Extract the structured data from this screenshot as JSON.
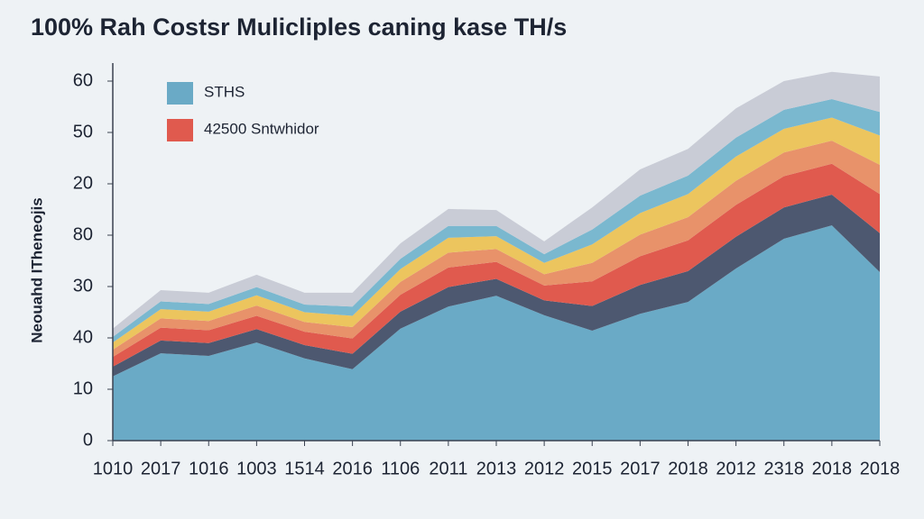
{
  "chart_data": {
    "type": "stacked-area",
    "title": "100% Rah Costsr Mulicliples caning kase TH/s",
    "y_label": "Neouahd ITheneojis",
    "categories": [
      "1010",
      "2017",
      "1016",
      "1003",
      "1514",
      "2016",
      "1106",
      "2011",
      "2013",
      "2012",
      "2015",
      "2017",
      "2018",
      "2012",
      "2318",
      "2018",
      "2018"
    ],
    "ylim": [
      0,
      7.35
    ],
    "yticks": [
      0,
      {
        "value": 1,
        "label": "10"
      },
      {
        "value": 2,
        "label": "40"
      },
      {
        "value": 3,
        "label": "30"
      },
      {
        "value": 4,
        "label": "80"
      },
      {
        "value": 5,
        "label": "20"
      },
      {
        "value": 6,
        "label": "50"
      },
      {
        "value": 7,
        "label": "60"
      }
    ],
    "grid": false,
    "legend": "top-left",
    "series": [
      {
        "name": "STHS",
        "color": "#6aaac6",
        "values": [
          1.25,
          1.7,
          1.65,
          1.91,
          1.6,
          1.39,
          2.18,
          2.61,
          2.82,
          2.44,
          2.14,
          2.47,
          2.7,
          3.35,
          3.93,
          4.19,
          3.28
        ]
      },
      {
        "color": "#4d5870",
        "values": [
          0.19,
          0.25,
          0.25,
          0.26,
          0.26,
          0.3,
          0.33,
          0.38,
          0.33,
          0.29,
          0.48,
          0.56,
          0.6,
          0.62,
          0.61,
          0.6,
          0.76
        ]
      },
      {
        "name": "42500 Sntwhidor",
        "color": "#e05a4e",
        "values": [
          0.19,
          0.25,
          0.25,
          0.26,
          0.26,
          0.3,
          0.33,
          0.38,
          0.33,
          0.29,
          0.48,
          0.56,
          0.6,
          0.62,
          0.61,
          0.6,
          0.76
        ]
      },
      {
        "color": "#e8926a",
        "values": [
          0.14,
          0.18,
          0.18,
          0.2,
          0.19,
          0.22,
          0.25,
          0.29,
          0.25,
          0.22,
          0.36,
          0.42,
          0.45,
          0.47,
          0.46,
          0.45,
          0.57
        ]
      },
      {
        "color": "#ecc55e",
        "values": [
          0.14,
          0.18,
          0.18,
          0.2,
          0.19,
          0.22,
          0.25,
          0.29,
          0.25,
          0.22,
          0.36,
          0.42,
          0.45,
          0.47,
          0.46,
          0.45,
          0.57
        ]
      },
      {
        "color": "#7ab8cf",
        "values": [
          0.11,
          0.15,
          0.15,
          0.16,
          0.15,
          0.18,
          0.2,
          0.23,
          0.2,
          0.17,
          0.29,
          0.34,
          0.36,
          0.37,
          0.37,
          0.36,
          0.46
        ]
      },
      {
        "color": "#c9ccd6",
        "values": [
          0.16,
          0.22,
          0.22,
          0.24,
          0.23,
          0.27,
          0.3,
          0.33,
          0.31,
          0.25,
          0.43,
          0.51,
          0.52,
          0.57,
          0.56,
          0.53,
          0.69
        ]
      }
    ]
  }
}
